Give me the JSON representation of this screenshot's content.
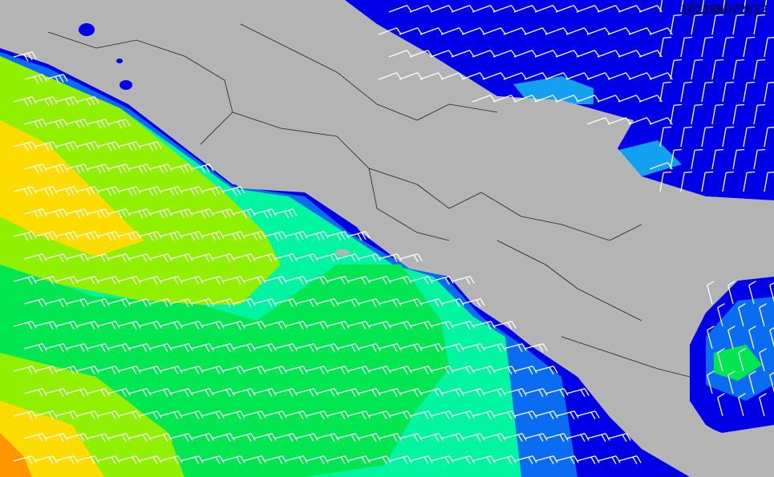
{
  "map": {
    "timestamp": "18Z18NOV2022",
    "colors": {
      "land": "#b4b4b4",
      "deep_blue": "#0000e6",
      "blue": "#0a6cf0",
      "cyan": "#14a0f0",
      "aqua": "#00f5a0",
      "green": "#00e650",
      "light_green": "#90f000",
      "yellow": "#ffdc00",
      "orange": "#ff9600",
      "barb": "#ffffff",
      "border": "#222222"
    },
    "layer": "wind-barbs"
  }
}
